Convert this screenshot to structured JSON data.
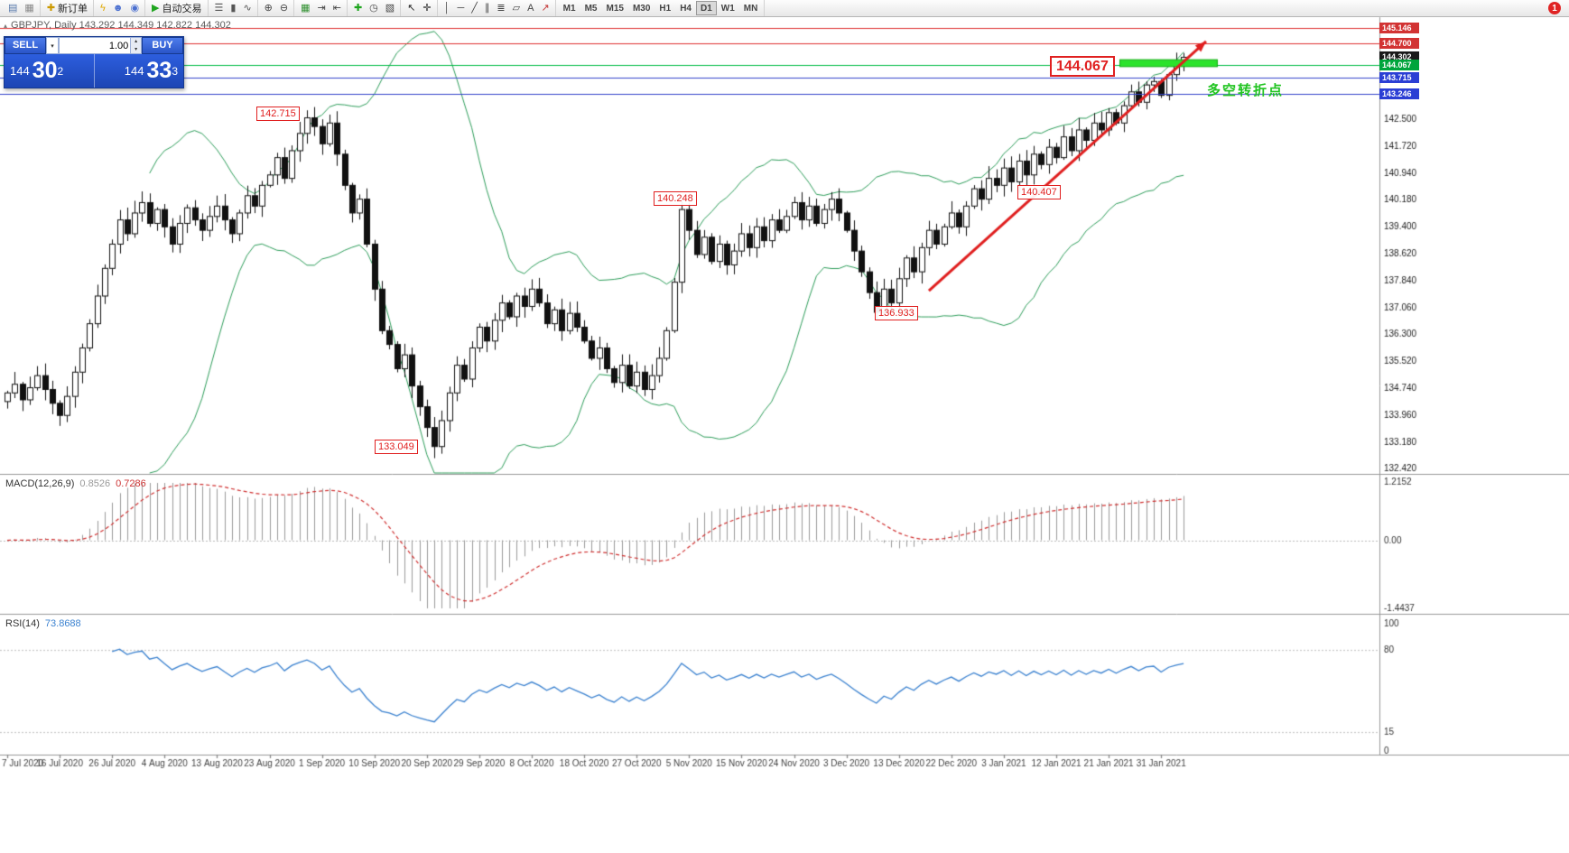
{
  "toolbar": {
    "notification_count": "1",
    "timeframes": [
      "M1",
      "M5",
      "M15",
      "M30",
      "H1",
      "H4",
      "D1",
      "W1",
      "MN"
    ],
    "active_timeframe": "D1",
    "groups": [
      {
        "items": [
          {
            "name": "market-watch-icon",
            "glyph": "▤",
            "color": "#5577aa"
          },
          {
            "name": "data-window-icon",
            "glyph": "▦",
            "color": "#888888"
          }
        ]
      },
      {
        "items": [
          {
            "name": "new-order-button",
            "glyph": "✚",
            "color": "#cc9900",
            "label": "新订单"
          }
        ]
      },
      {
        "items": [
          {
            "name": "history-center-icon",
            "glyph": "ϟ",
            "color": "#e0a800"
          },
          {
            "name": "accounts-icon",
            "glyph": "☻",
            "color": "#4a6fd0"
          },
          {
            "name": "alerts-icon",
            "glyph": "◉",
            "color": "#4a6fd0"
          }
        ]
      },
      {
        "items": [
          {
            "name": "auto-trading-button",
            "glyph": "▶",
            "color": "#1fa51f",
            "label": "自动交易"
          }
        ]
      },
      {
        "items": [
          {
            "name": "bar-chart-icon",
            "glyph": "☰",
            "color": "#555555"
          },
          {
            "name": "candlestick-chart-icon",
            "glyph": "▮",
            "color": "#555555"
          },
          {
            "name": "line-chart-icon",
            "glyph": "∿",
            "color": "#555555"
          }
        ]
      },
      {
        "items": [
          {
            "name": "zoom-in-icon",
            "glyph": "⊕",
            "color": "#444444"
          },
          {
            "name": "zoom-out-icon",
            "glyph": "⊖",
            "color": "#444444"
          }
        ]
      },
      {
        "items": [
          {
            "name": "tile-windows-icon",
            "glyph": "▦",
            "color": "#2f8f2f"
          },
          {
            "name": "auto-scroll-icon",
            "glyph": "⇥",
            "color": "#444444"
          },
          {
            "name": "chart-shift-icon",
            "glyph": "⇤",
            "color": "#444444"
          }
        ]
      },
      {
        "items": [
          {
            "name": "indicators-icon",
            "glyph": "✚",
            "color": "#1fa51f"
          },
          {
            "name": "periods-icon",
            "glyph": "◷",
            "color": "#444444"
          },
          {
            "name": "templates-icon",
            "glyph": "▧",
            "color": "#444444"
          }
        ]
      },
      {
        "items": [
          {
            "name": "cursor-icon",
            "glyph": "↖",
            "color": "#222222"
          },
          {
            "name": "crosshair-icon",
            "glyph": "✛",
            "color": "#222222"
          }
        ]
      },
      {
        "items": [
          {
            "name": "vertical-line-icon",
            "glyph": "│",
            "color": "#444444"
          },
          {
            "name": "horizontal-line-icon",
            "glyph": "─",
            "color": "#444444"
          },
          {
            "name": "trendline-icon",
            "glyph": "╱",
            "color": "#444444"
          },
          {
            "name": "channel-icon",
            "glyph": "∥",
            "color": "#444444"
          },
          {
            "name": "fibonacci-icon",
            "glyph": "≣",
            "color": "#444444"
          },
          {
            "name": "shapes-icon",
            "glyph": "▱",
            "color": "#444444"
          },
          {
            "name": "text-icon",
            "glyph": "A",
            "color": "#444444"
          },
          {
            "name": "arrows-icon",
            "glyph": "↗",
            "color": "#c33333"
          }
        ]
      }
    ]
  },
  "symbol_header": {
    "text": "GBPJPY, Daily  143.292 144.349 142.822 144.302"
  },
  "one_click": {
    "sell_label": "SELL",
    "buy_label": "BUY",
    "volume": "1.00",
    "sell_base": "144",
    "sell_pips": "30",
    "sell_sup": "2",
    "buy_base": "144",
    "buy_pips": "33",
    "buy_sup": "3"
  },
  "annotations": {
    "peak_sep": "142.715",
    "low_sep": "133.049",
    "nov_high": "140.248",
    "jan_level": "140.407",
    "dec_low": "136.933",
    "key_level": "144.067",
    "trend_note": "多空转折点"
  },
  "indicators": {
    "macd_name": "MACD(12,26,9)",
    "macd_value_main": "0.8526",
    "macd_value_signal": "0.7286",
    "macd_scale": [
      "1.2152",
      "0.00",
      "-1.4437"
    ],
    "rsi_name": "RSI(14)",
    "rsi_value": "73.8688",
    "rsi_scale": [
      "100",
      "80",
      "15",
      "0"
    ]
  },
  "price_axis": {
    "ticks": [
      "142.500",
      "141.720",
      "140.940",
      "140.180",
      "139.400",
      "138.620",
      "137.840",
      "137.060",
      "136.300",
      "135.520",
      "134.740",
      "133.960",
      "133.180",
      "132.420"
    ],
    "tags": [
      {
        "label": "145.146",
        "color": "#d23333"
      },
      {
        "label": "144.700",
        "color": "#d23333"
      },
      {
        "label": "144.302",
        "color": "#1a1a1a"
      },
      {
        "label": "144.067",
        "color": "#00a53c"
      },
      {
        "label": "143.715",
        "color": "#2b3fd4"
      },
      {
        "label": "143.246",
        "color": "#2b3fd4"
      }
    ]
  },
  "chart_data": {
    "type": "candlestick",
    "symbol": "GBPJPY",
    "timeframe": "Daily",
    "ohlc_header": {
      "open": "143.292",
      "high": "144.349",
      "low": "142.822",
      "close": "144.302"
    },
    "x_labels": [
      "7 Jul 2020",
      "16 Jul 2020",
      "26 Jul 2020",
      "4 Aug 2020",
      "13 Aug 2020",
      "23 Aug 2020",
      "1 Sep 2020",
      "10 Sep 2020",
      "20 Sep 2020",
      "29 Sep 2020",
      "8 Oct 2020",
      "18 Oct 2020",
      "27 Oct 2020",
      "5 Nov 2020",
      "15 Nov 2020",
      "24 Nov 2020",
      "3 Dec 2020",
      "13 Dec 2020",
      "22 Dec 2020",
      "3 Jan 2021",
      "12 Jan 2021",
      "21 Jan 2021",
      "31 Jan 2021"
    ],
    "bars_per_label": 7,
    "ylim": [
      132.26,
      145.46
    ],
    "closes": [
      134.6,
      134.85,
      134.4,
      134.75,
      135.1,
      134.7,
      134.3,
      133.95,
      134.5,
      135.2,
      135.9,
      136.6,
      137.4,
      138.2,
      138.9,
      139.6,
      139.2,
      139.8,
      140.1,
      139.5,
      139.9,
      139.4,
      138.9,
      139.5,
      139.95,
      139.6,
      139.3,
      139.7,
      140.0,
      139.6,
      139.2,
      139.8,
      140.3,
      140.0,
      140.6,
      140.9,
      141.4,
      140.8,
      141.6,
      142.1,
      142.55,
      142.3,
      141.8,
      142.4,
      141.5,
      140.6,
      139.8,
      140.2,
      138.9,
      137.6,
      136.4,
      136.0,
      135.3,
      135.7,
      134.8,
      134.2,
      133.6,
      133.05,
      133.8,
      134.6,
      135.4,
      135.0,
      135.9,
      136.5,
      136.1,
      136.7,
      137.2,
      136.8,
      137.4,
      137.1,
      137.6,
      137.2,
      136.6,
      137.0,
      136.4,
      136.9,
      136.5,
      136.1,
      135.6,
      135.9,
      135.3,
      134.9,
      135.4,
      134.8,
      135.2,
      134.7,
      135.1,
      135.6,
      136.4,
      137.8,
      139.9,
      139.3,
      138.6,
      139.1,
      138.4,
      138.9,
      138.3,
      138.7,
      139.2,
      138.8,
      139.4,
      139.0,
      139.6,
      139.3,
      139.7,
      140.1,
      139.6,
      140.0,
      139.5,
      139.9,
      140.2,
      139.8,
      139.3,
      138.7,
      138.1,
      137.5,
      136.93,
      137.6,
      137.2,
      137.9,
      138.5,
      138.1,
      138.8,
      139.3,
      138.9,
      139.4,
      139.8,
      139.4,
      140.0,
      140.5,
      140.2,
      140.8,
      140.6,
      141.1,
      140.7,
      141.3,
      140.9,
      141.5,
      141.2,
      141.7,
      141.4,
      142.0,
      141.6,
      142.2,
      141.9,
      142.4,
      142.2,
      142.7,
      142.4,
      142.9,
      143.3,
      143.0,
      143.5,
      143.6,
      143.2,
      143.8,
      144.1,
      144.3
    ],
    "levels": [
      {
        "price": 145.146,
        "color": "#e03030"
      },
      {
        "price": 144.7,
        "color": "#e03030"
      },
      {
        "price": 144.067,
        "color": "#00bb44"
      },
      {
        "price": 143.715,
        "color": "#3344cc"
      },
      {
        "price": 143.246,
        "color": "#3344cc"
      }
    ],
    "overlays": {
      "resistance_band": {
        "from_bar": 148.5,
        "to_bar": 161.5,
        "price_top": 144.23,
        "price_bottom": 144.03,
        "fill": "#2be32b",
        "stroke": "#11aa11"
      },
      "trend_arrow": {
        "from_bar": 123,
        "from_price": 137.55,
        "to_bar": 160,
        "to_price": 144.76,
        "color": "#e01f1f"
      }
    },
    "overlay_indicators": {
      "bollinger": {
        "period": 20,
        "deviation": 2,
        "color": "#2e9e5b"
      },
      "macd": {
        "fast": 12,
        "slow": 26,
        "signal": 9,
        "hist_color": "#9a9a9a",
        "signal_color": "#d03030"
      },
      "rsi": {
        "period": 14,
        "color": "#3b82d0",
        "levels": [
          80,
          15
        ]
      }
    }
  }
}
